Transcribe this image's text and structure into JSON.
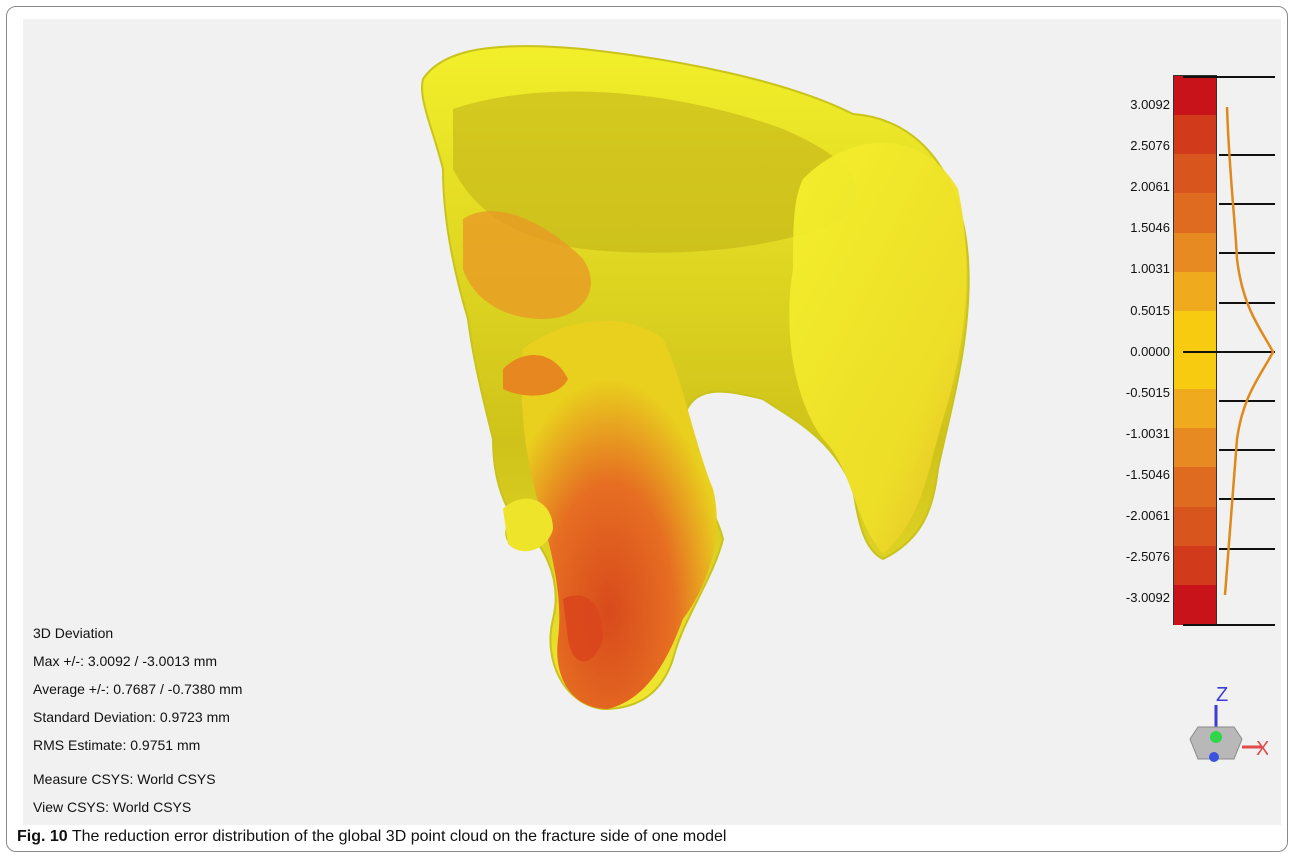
{
  "viewer": {
    "stats": {
      "title": "3D Deviation",
      "max": "Max +/-: 3.0092 / -3.0013 mm",
      "average": "Average +/-: 0.7687 / -0.7380 mm",
      "std": "Standard Deviation: 0.9723 mm",
      "rms": "RMS Estimate: 0.9751 mm",
      "measure_csys": "Measure CSYS: World CSYS",
      "view_csys": "View CSYS: World CSYS"
    },
    "scale": {
      "ticks": [
        "3.0092",
        "2.5076",
        "2.0061",
        "1.5046",
        "1.0031",
        "0.5015",
        "0.0000",
        "-0.5015",
        "-1.0031",
        "-1.5046",
        "-2.0061",
        "-2.5076",
        "-3.0092"
      ],
      "colors": [
        "#c8131a",
        "#d13a1a",
        "#d8561d",
        "#df6b21",
        "#e88a22",
        "#efaa1e",
        "#f6cb10",
        "#f6cb10",
        "#efaa1e",
        "#e88a22",
        "#df6b21",
        "#d8561d",
        "#d13a1a",
        "#c8131a"
      ]
    },
    "axis_labels": {
      "z": "Z",
      "x": "X"
    },
    "colors": {
      "viewport_bg": "#f1f1f1",
      "model_yellow": "#eeee1c",
      "model_orange": "#e07a20",
      "model_red": "#d4401e"
    }
  },
  "caption": {
    "label": "Fig. 10",
    "text": "The reduction error distribution of the global 3D point cloud on the fracture side of one model"
  }
}
